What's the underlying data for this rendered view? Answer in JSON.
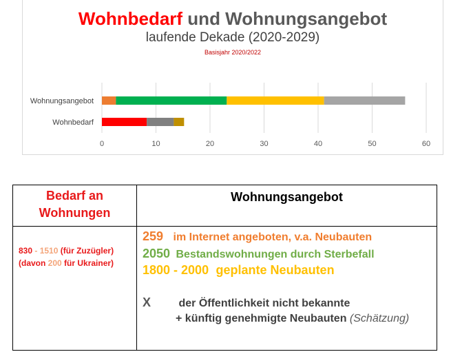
{
  "chart_data": {
    "type": "bar",
    "orientation": "horizontal",
    "stacked": true,
    "title_red": "Wohnbedarf",
    "title_rest": " und Wohnungsangebot",
    "subtitle": "laufende Dekade (2020-2029)",
    "note": "Basisjahr 2020/2022",
    "categories": [
      "Wohnungsangebot",
      "Wohnbedarf"
    ],
    "xlim": [
      0,
      60
    ],
    "xticks": [
      "0",
      "10",
      "20",
      "30",
      "40",
      "50",
      "60"
    ],
    "grid": true,
    "legend": "none",
    "bars": [
      {
        "category": "Wohnungsangebot",
        "segments": [
          {
            "value": 2.6,
            "color": "#ed7d31"
          },
          {
            "value": 20.5,
            "color": "#00b050"
          },
          {
            "value": 18.0,
            "color": "#ffc000"
          },
          {
            "value": 15.0,
            "color": "#a5a5a5"
          }
        ]
      },
      {
        "category": "Wohnbedarf",
        "segments": [
          {
            "value": 8.3,
            "color": "#ff0000"
          },
          {
            "value": 5.0,
            "color": "#808080"
          },
          {
            "value": 1.9,
            "color": "#bf8f00"
          }
        ]
      }
    ]
  },
  "table": {
    "need_header_line1": "Bedarf an",
    "need_header_line2": "Wohnungen",
    "offer_header": "Wohnungsangebot",
    "need_a": "830",
    "need_b": " - ",
    "need_c": "1510",
    "need_d": " (für Zuzügler)",
    "need_e": "(davon ",
    "need_f": "200",
    "need_g": " für Ukrainer)",
    "offer1_num": "259",
    "offer1_text": "im Internet angeboten, v.a. Neubauten",
    "offer2_num": "2050",
    "offer2_text": "Bestandswohnungen durch Sterbefall",
    "offer3_num": "1800 - 2000",
    "offer3_text": "geplante Neubauten",
    "offer4_num": "X",
    "offer4_text": "der Öffentlichkeit nicht bekannte",
    "offer5_text": "+ künftig genehmigte Neubauten",
    "offer5_note": "(Schätzung)"
  }
}
